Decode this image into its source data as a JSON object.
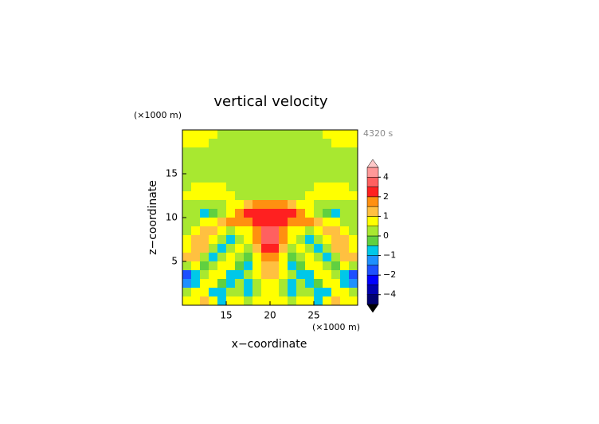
{
  "chart_data": {
    "type": "heatmap",
    "title": "vertical velocity",
    "x_unit": "(×1000 m)",
    "y_unit": "(×1000 m)",
    "time_label": "4320 s",
    "xlabel": "x−coordinate",
    "ylabel": "z−coordinate",
    "xlim": [
      10,
      30
    ],
    "ylim": [
      0,
      20
    ],
    "xticks": [
      15,
      20,
      25
    ],
    "yticks": [
      5,
      10,
      15
    ],
    "x": [
      10.5,
      11.5,
      12.5,
      13.5,
      14.5,
      15.5,
      16.5,
      17.5,
      18.5,
      19.5,
      20.5,
      21.5,
      22.5,
      23.5,
      24.5,
      25.5,
      26.5,
      27.5,
      28.5,
      29.5
    ],
    "y": [
      19.5,
      18.5,
      17.5,
      16.5,
      15.5,
      14.5,
      13.5,
      12.5,
      11.5,
      10.5,
      9.5,
      8.5,
      7.5,
      6.5,
      5.5,
      4.5,
      3.5,
      2.5,
      1.5,
      0.5
    ],
    "values": [
      [
        0.6,
        0.6,
        0.6,
        0.5,
        0.3,
        0.2,
        0.2,
        0.2,
        0.3,
        0.3,
        0.3,
        0.3,
        0.2,
        0.2,
        0.2,
        0.3,
        0.5,
        0.6,
        0.6,
        0.6
      ],
      [
        0.6,
        0.6,
        0.5,
        0.4,
        0.2,
        0.1,
        0.1,
        0.1,
        0.1,
        0.1,
        0.1,
        0.1,
        0.1,
        0.1,
        0.1,
        0.2,
        0.4,
        0.5,
        0.6,
        0.6
      ],
      [
        0.1,
        0.1,
        0.1,
        0.1,
        0.1,
        0.1,
        0.1,
        0.1,
        0.1,
        0.1,
        0.1,
        0.1,
        0.1,
        0.1,
        0.1,
        0.1,
        0.1,
        0.1,
        0.1,
        0.1
      ],
      [
        0.1,
        0.1,
        0.1,
        0.1,
        0.1,
        0.1,
        0.1,
        0.1,
        0.1,
        0.1,
        0.1,
        0.1,
        0.1,
        0.1,
        0.1,
        0.1,
        0.1,
        0.1,
        0.1,
        0.1
      ],
      [
        0,
        0,
        0,
        0,
        0,
        0,
        0,
        0,
        0,
        0,
        0,
        0,
        0,
        0,
        0,
        0,
        0,
        0,
        0,
        0
      ],
      [
        0,
        0,
        0,
        0,
        0,
        0,
        0,
        0,
        0,
        0,
        0,
        0,
        0,
        0,
        0,
        0,
        0,
        0,
        0,
        0
      ],
      [
        0.4,
        0.5,
        0.6,
        0.6,
        0.5,
        0.4,
        0.3,
        0.2,
        0.2,
        0.2,
        0.2,
        0.2,
        0.2,
        0.3,
        0.4,
        0.5,
        0.6,
        0.6,
        0.5,
        0.4
      ],
      [
        0.5,
        0.6,
        0.7,
        0.7,
        0.6,
        0.5,
        0.3,
        0.2,
        0.2,
        0.2,
        0.2,
        0.2,
        0.2,
        0.3,
        0.5,
        0.6,
        0.7,
        0.7,
        0.6,
        0.5
      ],
      [
        0.2,
        0.2,
        0.3,
        0.3,
        0.4,
        0.5,
        0.7,
        1,
        1.5,
        1.5,
        1.5,
        1.5,
        1,
        0.7,
        0.5,
        0.4,
        0.3,
        0.3,
        0.2,
        0.2
      ],
      [
        0,
        0,
        -0.6,
        -0.3,
        0.2,
        0.6,
        1.5,
        2.5,
        2.2,
        2,
        2,
        2.2,
        2.5,
        1.5,
        0.6,
        0.2,
        -0.3,
        -0.6,
        0,
        0
      ],
      [
        0,
        0.2,
        0.5,
        0.8,
        1.2,
        1.5,
        1.6,
        1.5,
        2.2,
        2.4,
        2.4,
        2.2,
        1.5,
        1.6,
        1.5,
        1.2,
        0.8,
        0.5,
        0.2,
        0
      ],
      [
        0.3,
        0.6,
        1,
        1.2,
        0.8,
        0.4,
        0.6,
        0.8,
        1.8,
        3,
        3,
        1.8,
        0.8,
        0.6,
        0.4,
        0.8,
        1.2,
        1,
        0.6,
        0.3
      ],
      [
        0.6,
        1.2,
        1.2,
        0.6,
        0,
        -0.6,
        0.2,
        0.6,
        1.5,
        3.5,
        3.5,
        1.5,
        0.6,
        0.2,
        -0.6,
        0,
        0.6,
        1.2,
        1.2,
        0.6
      ],
      [
        0.8,
        1.4,
        1,
        0,
        -0.8,
        0.2,
        0.8,
        0.4,
        1.2,
        2.8,
        2.8,
        1.2,
        0.4,
        0.8,
        0.2,
        -0.8,
        0,
        1,
        1.4,
        0.8
      ],
      [
        1,
        1.2,
        0.4,
        -0.8,
        0,
        0.8,
        0.4,
        -0.3,
        0.8,
        1.8,
        1.8,
        0.8,
        -0.3,
        0.4,
        0.8,
        0,
        -0.8,
        0.4,
        1.2,
        1
      ],
      [
        0.4,
        0.6,
        -0.4,
        0,
        0.8,
        0.6,
        -0.4,
        -0.6,
        0.6,
        1.2,
        1.2,
        0.6,
        -0.6,
        -0.4,
        0.6,
        0.8,
        0,
        -0.4,
        0.6,
        0.4
      ],
      [
        -1.6,
        -1,
        0.2,
        0.8,
        0.8,
        -0.6,
        -1,
        0,
        0.8,
        1,
        1,
        0.8,
        0,
        -1,
        -0.6,
        0.8,
        0.8,
        0.2,
        -1,
        -1.6
      ],
      [
        -1.4,
        -0.6,
        0.6,
        0.8,
        -0.4,
        -1,
        0.2,
        -0.8,
        0.4,
        0.8,
        0.8,
        0.4,
        -0.8,
        0.2,
        -1,
        -0.4,
        0.8,
        0.6,
        -0.6,
        -1.4
      ],
      [
        0.2,
        0.6,
        0.6,
        -0.6,
        -1,
        0,
        0.4,
        -1,
        0.2,
        0.6,
        0.6,
        0.2,
        -1,
        0.4,
        0,
        -1,
        -0.6,
        0.6,
        0.6,
        0.2
      ],
      [
        0.6,
        0.8,
        1,
        0.6,
        -0.6,
        0.6,
        0.6,
        0,
        0.6,
        0.6,
        0.6,
        0.6,
        0,
        0.6,
        0.6,
        -0.6,
        0.6,
        1,
        0.8,
        0.6
      ]
    ],
    "levels": [
      -5,
      -4,
      -3,
      -2,
      -1.5,
      -1,
      -0.5,
      0,
      0.5,
      1,
      1.5,
      2,
      3,
      4,
      5
    ],
    "colors": [
      "#000070",
      "#0000b0",
      "#0000ff",
      "#1e50ff",
      "#1e90ff",
      "#00c8e8",
      "#60d040",
      "#a8e830",
      "#ffff00",
      "#ffc040",
      "#ff9010",
      "#ff2020",
      "#ff6060",
      "#ff9898"
    ],
    "extend_colors": [
      "#000000",
      "#ffc8c8"
    ],
    "colorbar_ticks": [
      4,
      2,
      1,
      0,
      {
        "value": -1,
        "label": "−1"
      },
      {
        "value": -2,
        "label": "−2"
      },
      {
        "value": -4,
        "label": "−4"
      }
    ]
  }
}
